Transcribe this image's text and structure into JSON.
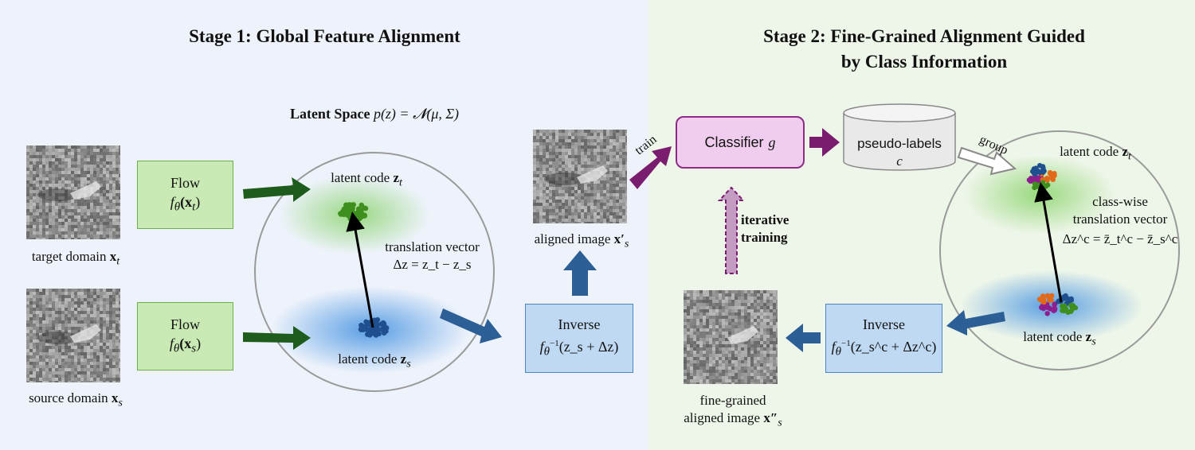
{
  "stage1": {
    "title": "Stage 1: Global Feature Alignment"
  },
  "stage2": {
    "title_line1": "Stage 2: Fine-Grained Alignment Guided",
    "title_line2": "by Class Information"
  },
  "latent_space": {
    "label": "Latent Space",
    "formula": "p(z) = 𝓝(μ, Σ)"
  },
  "images": {
    "target": {
      "label": "target domain",
      "var": "x",
      "sub": "t"
    },
    "source": {
      "label": "source domain",
      "var": "x",
      "sub": "s"
    },
    "aligned": {
      "label": "aligned image",
      "var": "x′",
      "sub": "s"
    },
    "fine": {
      "label_line1": "fine-grained",
      "label_line2": "aligned image",
      "var": "x″",
      "sub": "s"
    }
  },
  "flow_boxes": [
    {
      "title": "Flow",
      "func": "f",
      "theta": "θ",
      "arg": "(x",
      "sub": "t",
      "close": ")"
    },
    {
      "title": "Flow",
      "func": "f",
      "theta": "θ",
      "arg": "(x",
      "sub": "s",
      "close": ")"
    }
  ],
  "inverse1": {
    "title": "Inverse",
    "expr": "(z_s + Δz)"
  },
  "inverse2": {
    "title": "Inverse",
    "expr": "(z_s^c + Δz^c)"
  },
  "classifier": {
    "title": "Classifier",
    "var": "g"
  },
  "pseudo": {
    "line1": "pseudo-labels",
    "line2": "c"
  },
  "arrows": {
    "train": "train",
    "group": "group",
    "iter_line1": "iterative",
    "iter_line2": "training"
  },
  "latent1": {
    "zt_label": "latent code",
    "zs_label": "latent code",
    "vec_line1": "translation vector",
    "vec_formula": "Δz = z_t − z_s"
  },
  "latent2": {
    "zt_label": "latent code",
    "zs_label": "latent code",
    "vec_line1": "class-wise",
    "vec_line2": "translation vector",
    "vec_formula": "Δz^c = z̄_t^c − z̄_s^c"
  },
  "colors": {
    "stage1_bg": "#eef3fb",
    "stage2_bg": "#eef6e9",
    "flow_arrow": "#1e5c1e",
    "blue_arrow": "#2b5f96",
    "purple_arrow": "#7b1d6f",
    "green_points": "#3f8f1f",
    "blue_points": "#1f4f8f",
    "class_purple": "#8e1e8e",
    "class_orange": "#e06a1a"
  }
}
